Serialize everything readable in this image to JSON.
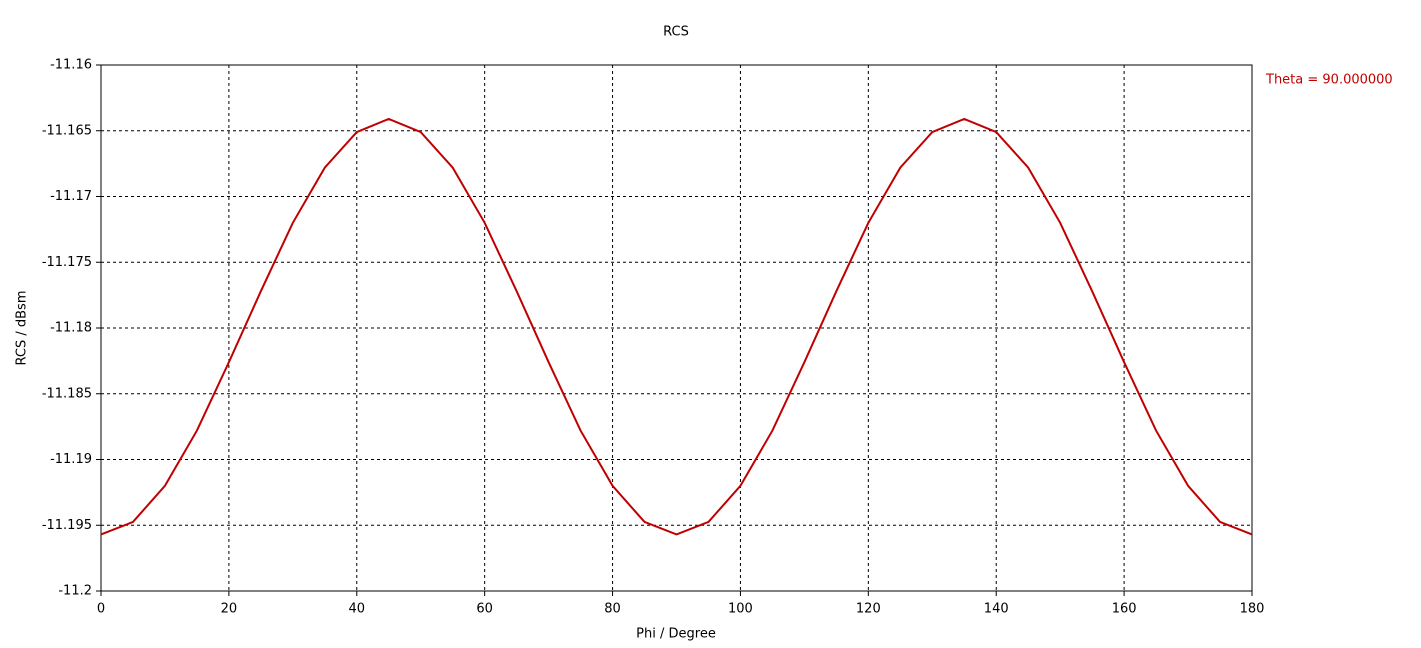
{
  "chart_data": {
    "type": "line",
    "title": "RCS",
    "x_label": "Phi / Degree",
    "y_label": "RCS / dBsm",
    "x": [
      0,
      5,
      10,
      15,
      20,
      25,
      30,
      35,
      40,
      45,
      50,
      55,
      60,
      65,
      70,
      75,
      80,
      85,
      90,
      95,
      100,
      105,
      110,
      115,
      120,
      125,
      130,
      135,
      140,
      145,
      150,
      155,
      160,
      165,
      170,
      175,
      180
    ],
    "series": [
      {
        "name": "Theta = 90.000000",
        "color": "#c00000",
        "values": [
          -11.1957,
          -11.19475,
          -11.192,
          -11.1878,
          -11.1826,
          -11.1772,
          -11.172,
          -11.1678,
          -11.1651,
          -11.1641,
          -11.1651,
          -11.1678,
          -11.172,
          -11.1772,
          -11.1826,
          -11.1878,
          -11.192,
          -11.19475,
          -11.1957,
          -11.19475,
          -11.192,
          -11.1878,
          -11.1826,
          -11.1772,
          -11.172,
          -11.1678,
          -11.1651,
          -11.1641,
          -11.1651,
          -11.1678,
          -11.172,
          -11.1772,
          -11.1826,
          -11.1878,
          -11.192,
          -11.19475,
          -11.1957
        ]
      }
    ],
    "xlim": [
      0,
      180
    ],
    "xticks": [
      0,
      20,
      40,
      60,
      80,
      100,
      120,
      140,
      160,
      180
    ],
    "ylim": [
      -11.2,
      -11.16
    ],
    "yticks": [
      -11.16,
      -11.165,
      -11.17,
      -11.175,
      -11.18,
      -11.185,
      -11.19,
      -11.195,
      -11.2
    ],
    "grid": true,
    "legend": "right"
  }
}
